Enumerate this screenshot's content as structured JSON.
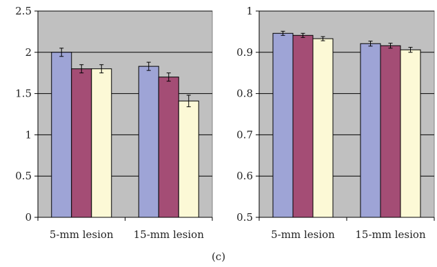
{
  "caption": "(c)",
  "colors": {
    "plot_background": "#c0c0c0",
    "gridline": "#000000",
    "series": [
      "#9ea4d6",
      "#a44d75",
      "#fcf9d6"
    ]
  },
  "chart_data": [
    {
      "type": "bar",
      "categories": [
        "5-mm lesion",
        "15-mm lesion"
      ],
      "ylim": [
        0,
        2.5
      ],
      "yticks": [
        0,
        0.5,
        1,
        1.5,
        2,
        2.5
      ],
      "ytick_labels": [
        "0",
        "0.5",
        "1",
        "1.5",
        "2",
        "2.5"
      ],
      "grid": true,
      "series": [
        {
          "values": [
            2.0,
            1.83
          ],
          "errors": [
            0.05,
            0.05
          ]
        },
        {
          "values": [
            1.8,
            1.7
          ],
          "errors": [
            0.05,
            0.05
          ]
        },
        {
          "values": [
            1.8,
            1.41
          ],
          "errors": [
            0.05,
            0.07
          ]
        }
      ]
    },
    {
      "type": "bar",
      "categories": [
        "5-mm lesion",
        "15-mm lesion"
      ],
      "ylim": [
        0.5,
        1
      ],
      "yticks": [
        0.5,
        0.6,
        0.7,
        0.8,
        0.9,
        1
      ],
      "ytick_labels": [
        "0.5",
        "0.6",
        "0.7",
        "0.8",
        "0.9",
        "1"
      ],
      "grid": true,
      "series": [
        {
          "values": [
            0.946,
            0.921
          ],
          "errors": [
            0.005,
            0.006
          ]
        },
        {
          "values": [
            0.941,
            0.916
          ],
          "errors": [
            0.005,
            0.006
          ]
        },
        {
          "values": [
            0.933,
            0.906
          ],
          "errors": [
            0.005,
            0.006
          ]
        }
      ]
    }
  ]
}
